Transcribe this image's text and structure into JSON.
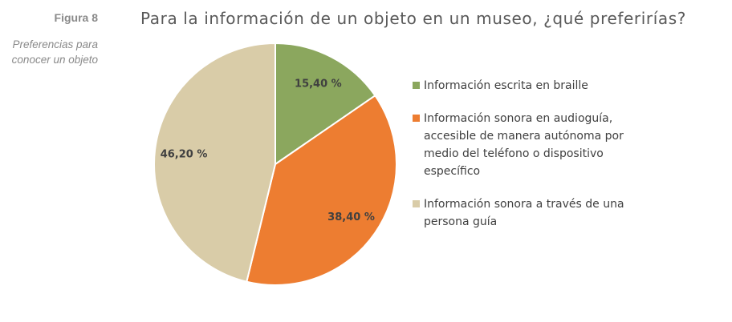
{
  "figure": {
    "label": "Figura 8",
    "subtitle": "Preferencias para conocer un objeto"
  },
  "chart_data": {
    "type": "pie",
    "title": "Para la información de un objeto en un museo, ¿qué preferirías?",
    "slices": [
      {
        "label": "Información escrita en braille",
        "value": 15.4,
        "display": "15,40 %",
        "color": "#8BA75E"
      },
      {
        "label": "Información sonora en audioguía, accesible de manera autónoma por medio del teléfono o dispositivo específico",
        "value": 38.4,
        "display": "38,40 %",
        "color": "#ED7D31"
      },
      {
        "label": "Información sonora a través de una persona guía",
        "value": 46.2,
        "display": "46,20 %",
        "color": "#D9CCA8"
      }
    ],
    "legend_position": "right",
    "start": "top, clockwise"
  }
}
